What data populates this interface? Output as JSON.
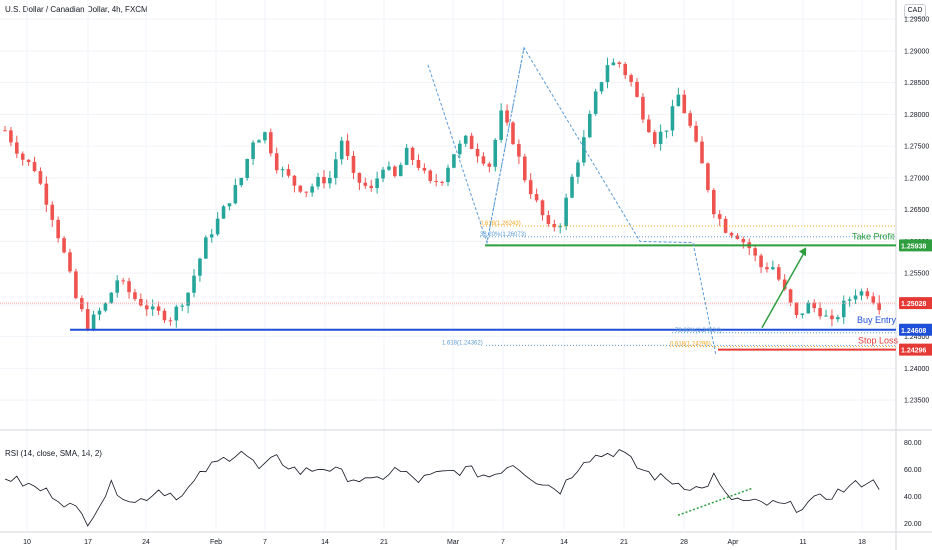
{
  "header": {
    "title": "U.S. Dollar / Canadian Dollar, 4h, FXCM",
    "currency": "CAD"
  },
  "rsi_title": "RSI (14, close, SMA, 14, 2)",
  "colors": {
    "up": "#26a69a",
    "down": "#ef5350",
    "take_profit": "#2e9e3e",
    "buy_entry": "#1e4fd8",
    "stop_loss": "#e53935",
    "fib_orange": "#f5a623",
    "fib_blue": "#5b9bd5",
    "rsi_line": "#131722",
    "rsi_trend": "#2e9e3e",
    "grid": "#f0f3fa",
    "price_line": "#f4a7a7"
  },
  "chart_data": {
    "type": "candlestick",
    "title": "U.S. Dollar / Canadian Dollar, 4h, FXCM",
    "ylim": [
      1.2325,
      1.2955
    ],
    "y_ticks": [
      "1.29500",
      "1.29000",
      "1.28500",
      "1.28000",
      "1.27500",
      "1.27000",
      "1.26500",
      "1.26000",
      "1.25500",
      "1.25000",
      "1.24500",
      "1.24000",
      "1.23500"
    ],
    "x_ticks": [
      "10",
      "17",
      "24",
      "Feb",
      "7",
      "14",
      "21",
      "Mar",
      "7",
      "14",
      "21",
      "28",
      "Apr",
      "11",
      "18"
    ],
    "approx_close_path": [
      [
        0,
        1.2775
      ],
      [
        3,
        1.273
      ],
      [
        5,
        1.2715
      ],
      [
        8,
        1.264
      ],
      [
        10,
        1.258
      ],
      [
        12,
        1.251
      ],
      [
        14,
        1.2468
      ],
      [
        17,
        1.25
      ],
      [
        19,
        1.254
      ],
      [
        22,
        1.251
      ],
      [
        25,
        1.249
      ],
      [
        28,
        1.248
      ],
      [
        31,
        1.252
      ],
      [
        34,
        1.26
      ],
      [
        37,
        1.265
      ],
      [
        40,
        1.27
      ],
      [
        42,
        1.276
      ],
      [
        44,
        1.277
      ],
      [
        46,
        1.272
      ],
      [
        49,
        1.269
      ],
      [
        51,
        1.268
      ],
      [
        53,
        1.2695
      ],
      [
        55,
        1.27
      ],
      [
        57,
        1.276
      ],
      [
        59,
        1.27
      ],
      [
        62,
        1.268
      ],
      [
        64,
        1.272
      ],
      [
        66,
        1.27
      ],
      [
        68,
        1.274
      ],
      [
        70,
        1.272
      ],
      [
        72,
        1.269
      ],
      [
        74,
        1.27
      ],
      [
        76,
        1.274
      ],
      [
        78,
        1.276
      ],
      [
        80,
        1.274
      ],
      [
        82,
        1.272
      ],
      [
        84,
        1.28
      ],
      [
        86,
        1.276
      ],
      [
        88,
        1.27
      ],
      [
        90,
        1.266
      ],
      [
        92,
        1.262
      ],
      [
        94,
        1.263
      ],
      [
        96,
        1.27
      ],
      [
        98,
        1.276
      ],
      [
        100,
        1.283
      ],
      [
        102,
        1.288
      ],
      [
        104,
        1.288
      ],
      [
        106,
        1.285
      ],
      [
        108,
        1.28
      ],
      [
        110,
        1.276
      ],
      [
        112,
        1.278
      ],
      [
        114,
        1.283
      ],
      [
        116,
        1.278
      ],
      [
        118,
        1.272
      ],
      [
        120,
        1.265
      ],
      [
        122,
        1.262
      ],
      [
        124,
        1.261
      ],
      [
        126,
        1.259
      ],
      [
        128,
        1.256
      ],
      [
        130,
        1.256
      ],
      [
        132,
        1.252
      ],
      [
        134,
        1.248
      ],
      [
        136,
        1.25
      ],
      [
        138,
        1.249
      ],
      [
        140,
        1.247
      ],
      [
        142,
        1.25
      ],
      [
        144,
        1.252
      ],
      [
        146,
        1.252
      ],
      [
        148,
        1.25
      ]
    ],
    "levels": {
      "take_profit": {
        "label": "Take Profit",
        "value": "1.25938"
      },
      "buy_entry": {
        "label": "Buy Entry",
        "value": "1.24608"
      },
      "stop_loss": {
        "label": "Stop Loss",
        "value": "1.24296"
      },
      "current_price": {
        "value": "1.25028"
      }
    },
    "fib_labels": {
      "f618_top": "0.618(1.26243)",
      "f382_top": "38.20%(1.26073)",
      "f786_bot": "78.60%(1.24624)",
      "f618_bot": "0.618(1.24296)",
      "f1618": "1.618(1.24362)"
    },
    "rsi": {
      "ylim": [
        15,
        85
      ],
      "y_ticks": [
        "80.00",
        "60.00",
        "40.00",
        "20.00"
      ],
      "approx_path": [
        [
          0,
          55
        ],
        [
          4,
          48
        ],
        [
          8,
          42
        ],
        [
          12,
          30
        ],
        [
          14,
          22
        ],
        [
          18,
          48
        ],
        [
          22,
          35
        ],
        [
          26,
          45
        ],
        [
          30,
          40
        ],
        [
          34,
          60
        ],
        [
          38,
          70
        ],
        [
          40,
          75
        ],
        [
          43,
          60
        ],
        [
          46,
          68
        ],
        [
          50,
          58
        ],
        [
          54,
          62
        ],
        [
          58,
          55
        ],
        [
          62,
          50
        ],
        [
          66,
          60
        ],
        [
          70,
          52
        ],
        [
          74,
          57
        ],
        [
          78,
          60
        ],
        [
          82,
          55
        ],
        [
          86,
          65
        ],
        [
          90,
          52
        ],
        [
          94,
          45
        ],
        [
          98,
          68
        ],
        [
          102,
          72
        ],
        [
          104,
          74
        ],
        [
          107,
          62
        ],
        [
          110,
          55
        ],
        [
          114,
          50
        ],
        [
          118,
          45
        ],
        [
          120,
          55
        ],
        [
          122,
          40
        ],
        [
          126,
          35
        ],
        [
          130,
          34
        ],
        [
          134,
          32
        ],
        [
          138,
          38
        ],
        [
          142,
          45
        ],
        [
          146,
          52
        ],
        [
          148,
          48
        ]
      ]
    }
  }
}
